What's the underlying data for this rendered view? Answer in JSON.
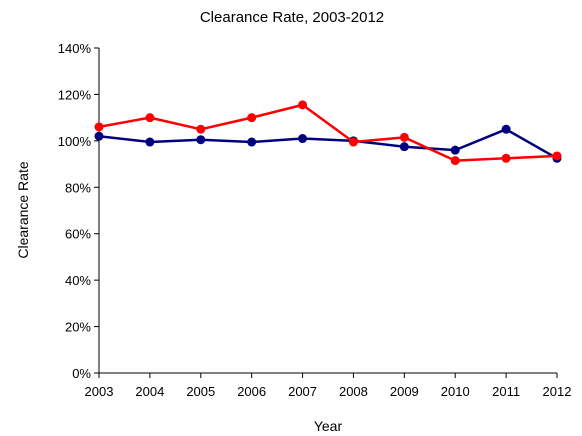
{
  "chart_data": {
    "type": "line",
    "title": "Clearance Rate, 2003-2012",
    "xlabel": "Year",
    "ylabel": "Clearance Rate",
    "categories": [
      "2003",
      "2004",
      "2005",
      "2006",
      "2007",
      "2008",
      "2009",
      "2010",
      "2011",
      "2012"
    ],
    "y_ticks": [
      "0%",
      "20%",
      "40%",
      "60%",
      "80%",
      "100%",
      "120%",
      "140%"
    ],
    "ylim": [
      0,
      140
    ],
    "grid": false,
    "legend": "none",
    "series": [
      {
        "color": "#00007f",
        "values": [
          102,
          99.5,
          100.5,
          99.5,
          101,
          100,
          97.5,
          96,
          105,
          92.5
        ]
      },
      {
        "color": "#ff0000",
        "values": [
          106,
          110,
          105,
          110,
          115.5,
          99.5,
          101.5,
          91.5,
          92.5,
          93.5
        ]
      }
    ]
  }
}
